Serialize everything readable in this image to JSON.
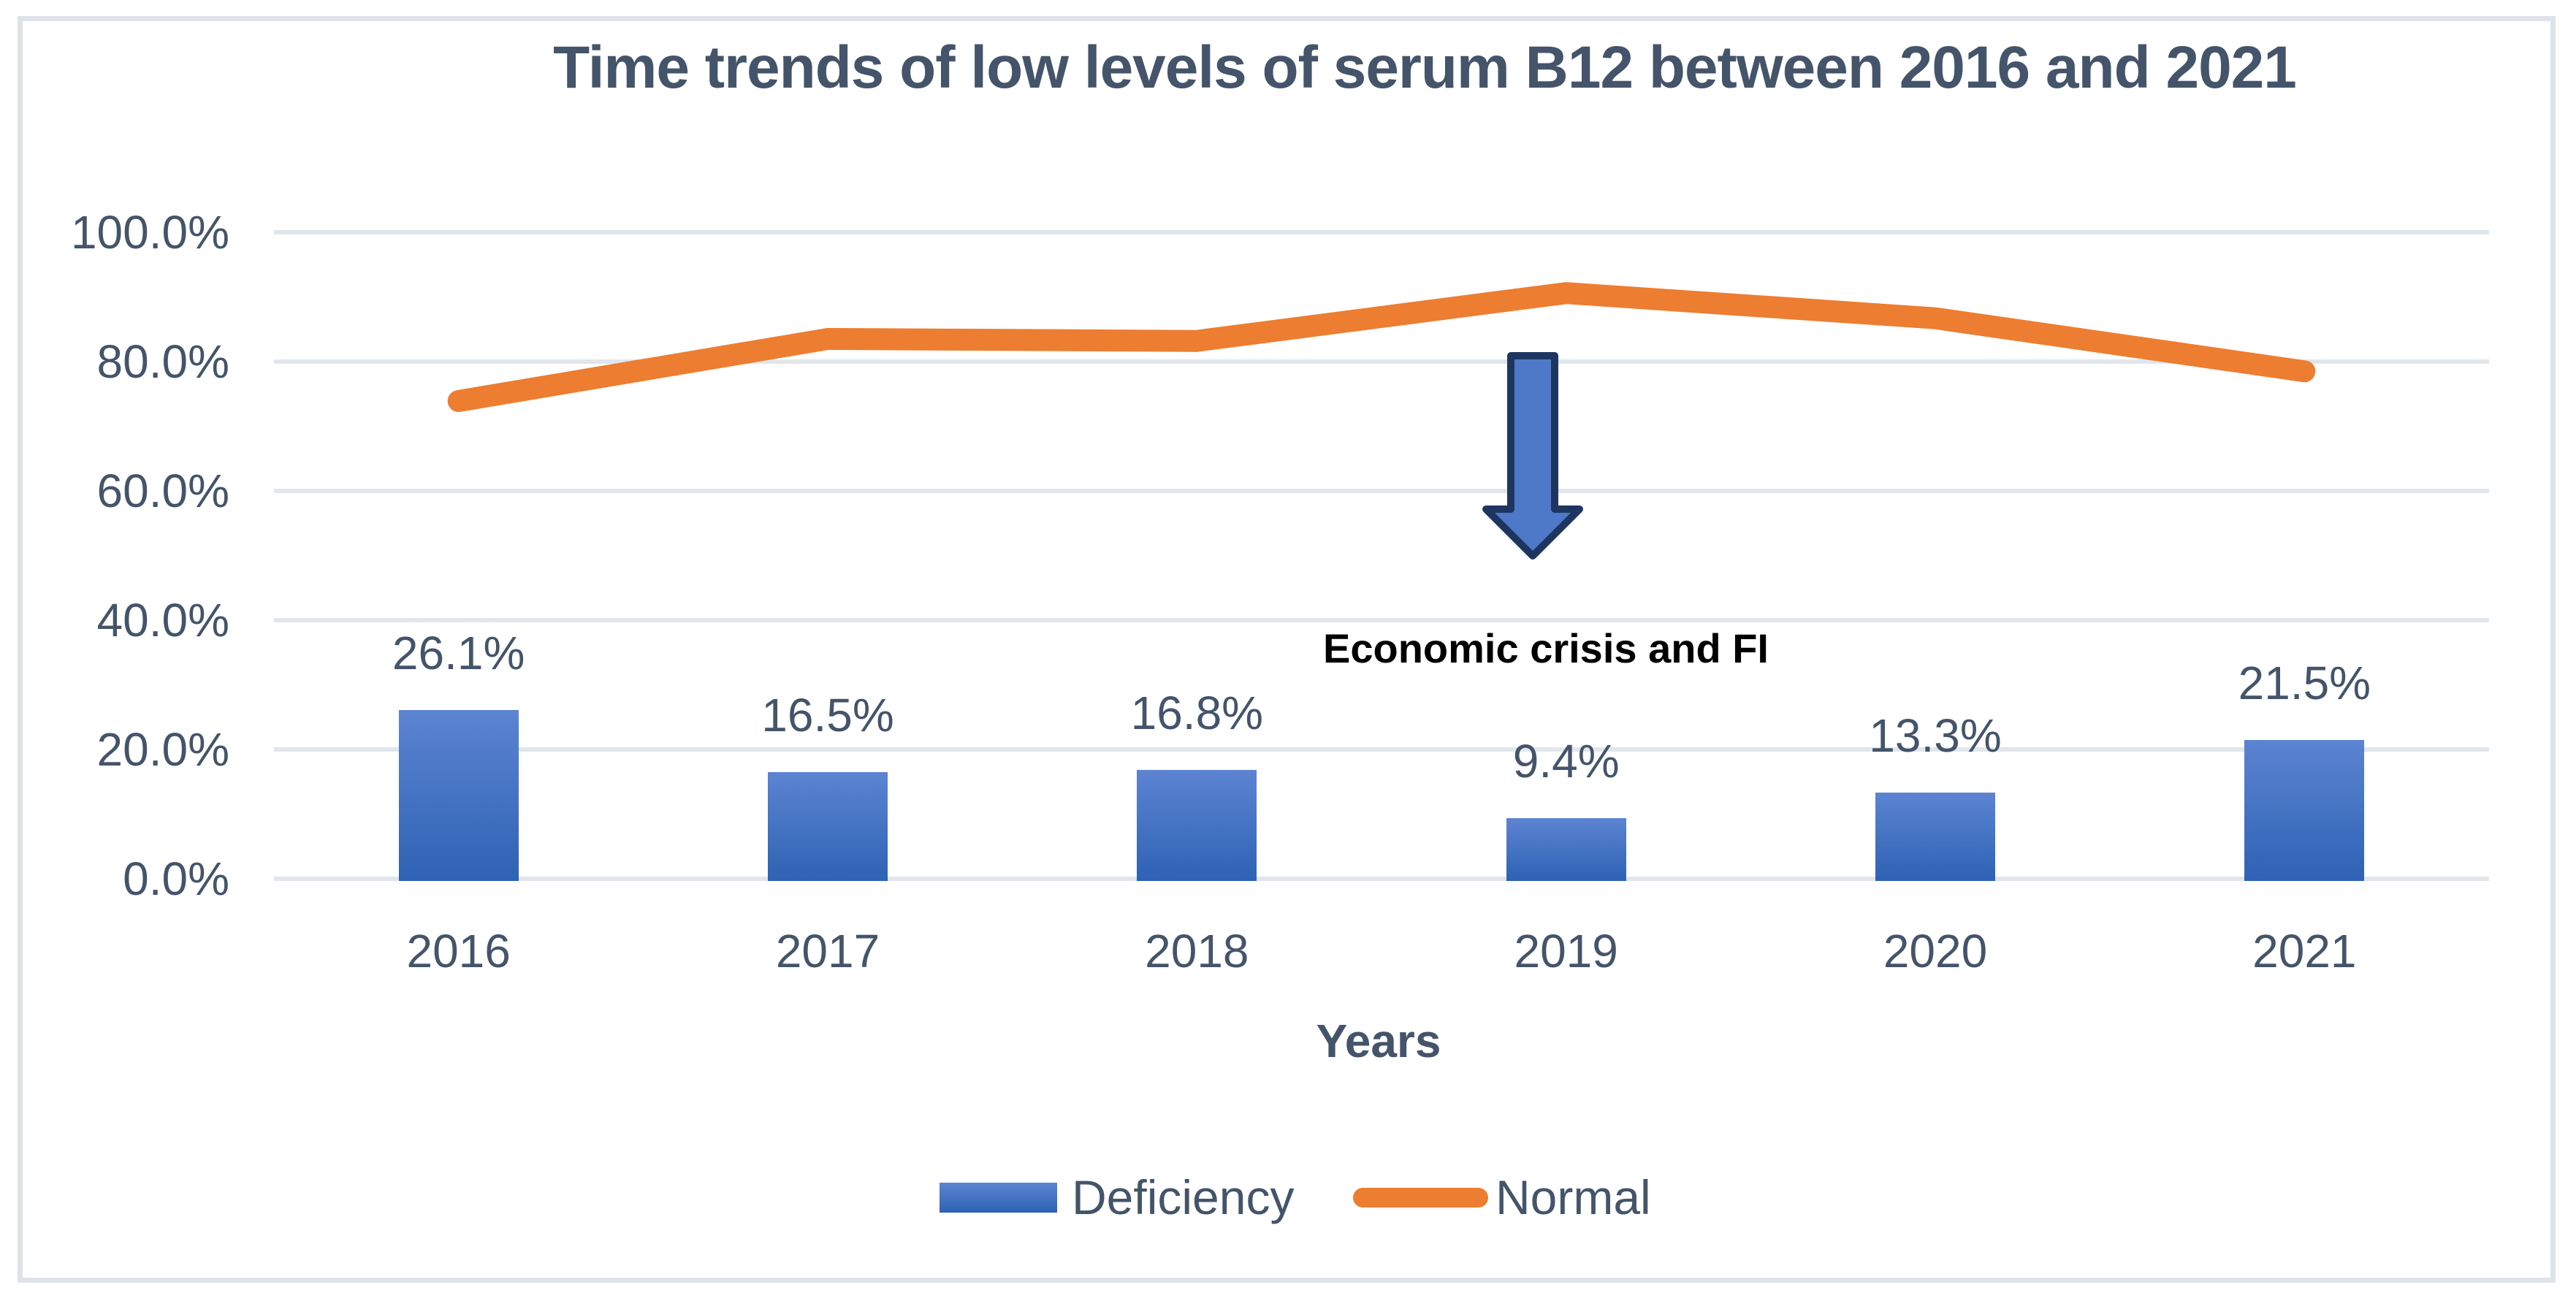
{
  "title": "Time trends of low levels of serum B12 between 2016 and 2021",
  "annotation": {
    "text": "Economic crisis and FI",
    "icon": "down-arrow-icon"
  },
  "legend": {
    "position": "bottom",
    "items": [
      {
        "label": "Deficiency",
        "swatch": "blue-gradient-bar"
      },
      {
        "label": "Normal",
        "swatch": "orange-rounded-line"
      }
    ]
  },
  "colors": {
    "text": "#44546A",
    "grid": "#E1E6EC",
    "border": "#DEE3E9",
    "bar_gradient_top": "#5C84D2",
    "bar_gradient_bottom": "#2E62B4",
    "line": "#ED7D31",
    "arrow_fill": "#4E79C8",
    "arrow_outline": "#1E3560",
    "annotation_text": "#000000"
  },
  "chart_data": {
    "type": "combo",
    "title": "Time trends of low levels of serum B12 between 2016 and 2021",
    "categories": [
      "2016",
      "2017",
      "2018",
      "2019",
      "2020",
      "2021"
    ],
    "series": [
      {
        "name": "Deficiency",
        "chart_type": "bar",
        "values": [
          26.1,
          16.5,
          16.8,
          9.4,
          13.3,
          21.5
        ],
        "data_labels": [
          "26.1%",
          "16.5%",
          "16.8%",
          "9.4%",
          "13.3%",
          "21.5%"
        ],
        "unit": "%",
        "color": "#3E6CBB"
      },
      {
        "name": "Normal",
        "chart_type": "line",
        "values": [
          73.9,
          83.5,
          83.2,
          90.6,
          86.7,
          78.5
        ],
        "unit": "%",
        "color": "#ED7D31"
      }
    ],
    "xlabel": "Years",
    "ylabel": "",
    "ylim": [
      0,
      100
    ],
    "yticks": [
      {
        "value": 100,
        "label": "100.0%"
      },
      {
        "value": 80,
        "label": "80.0%"
      },
      {
        "value": 60,
        "label": "60.0%"
      },
      {
        "value": 40,
        "label": "40.0%"
      },
      {
        "value": 20,
        "label": "20.0%"
      },
      {
        "value": 0,
        "label": "0.0%"
      }
    ],
    "grid": true,
    "legend_position": "bottom",
    "annotation": "Economic crisis and FI"
  }
}
